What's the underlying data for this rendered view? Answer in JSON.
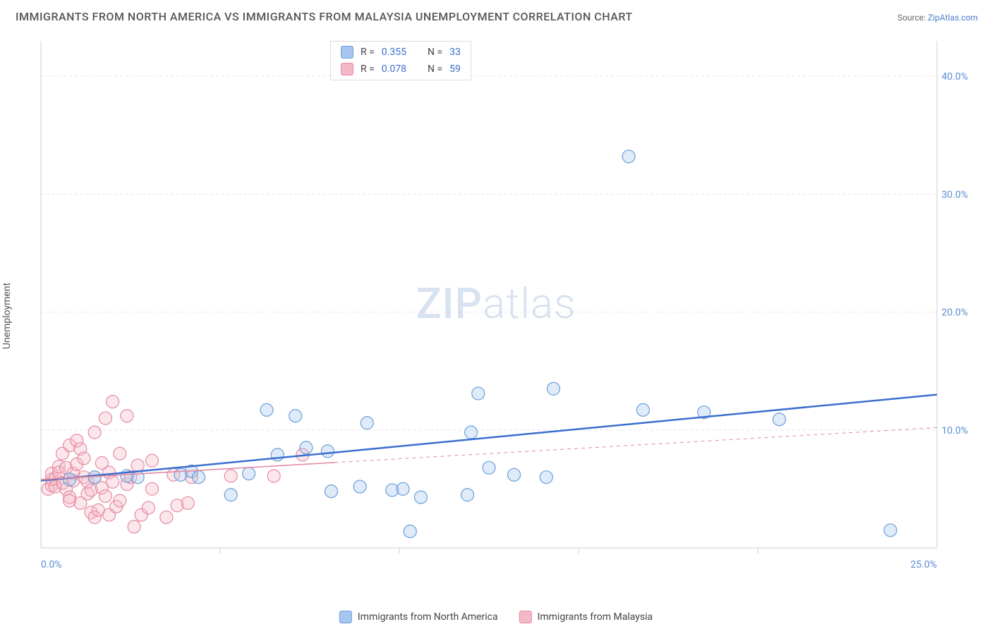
{
  "title": "IMMIGRANTS FROM NORTH AMERICA VS IMMIGRANTS FROM MALAYSIA UNEMPLOYMENT CORRELATION CHART",
  "source_label": "Source:",
  "source_name": "ZipAtlas.com",
  "ylabel": "Unemployment",
  "watermark_bold": "ZIP",
  "watermark_light": "atlas",
  "chart": {
    "type": "scatter",
    "xlim": [
      0,
      25
    ],
    "ylim": [
      0,
      43
    ],
    "x_tick_step": 5,
    "y_tick_step": 10,
    "x_tick_format": "percent_one_decimal",
    "y_tick_format": "percent_one_decimal",
    "x_tick_labels": [
      "0.0%",
      "25.0%"
    ],
    "y_tick_labels": [
      "10.0%",
      "20.0%",
      "30.0%",
      "40.0%"
    ],
    "background_color": "#ffffff",
    "grid_color": "#e6e6e6",
    "grid_dash": "4,4",
    "axis_color": "#cfcfcf",
    "tick_label_color": "#5b8dd6",
    "marker_radius": 9,
    "marker_fill_opacity": 0.35,
    "marker_stroke_width": 1.2,
    "series": [
      {
        "name": "Immigrants from North America",
        "key": "north_america",
        "color_fill": "#a7c6ef",
        "color_stroke": "#6a9ed8",
        "trend_color": "#3b6fcf",
        "trend_width": 2.5,
        "trend_dash_after_x": null,
        "r": "0.355",
        "n": "33",
        "points": [
          [
            3.9,
            6.2
          ],
          [
            4.2,
            6.5
          ],
          [
            4.4,
            6.0
          ],
          [
            5.3,
            4.5
          ],
          [
            5.8,
            6.3
          ],
          [
            6.3,
            11.7
          ],
          [
            7.1,
            11.2
          ],
          [
            7.4,
            8.5
          ],
          [
            6.6,
            7.9
          ],
          [
            8.0,
            8.2
          ],
          [
            8.1,
            4.8
          ],
          [
            8.9,
            5.2
          ],
          [
            9.1,
            10.6
          ],
          [
            9.8,
            4.9
          ],
          [
            10.1,
            5.0
          ],
          [
            10.3,
            1.4
          ],
          [
            10.6,
            4.3
          ],
          [
            11.9,
            4.5
          ],
          [
            12.0,
            9.8
          ],
          [
            12.2,
            13.1
          ],
          [
            12.5,
            6.8
          ],
          [
            13.2,
            6.2
          ],
          [
            14.1,
            6.0
          ],
          [
            14.3,
            13.5
          ],
          [
            16.4,
            33.2
          ],
          [
            16.8,
            11.7
          ],
          [
            18.5,
            11.5
          ],
          [
            20.6,
            10.9
          ],
          [
            23.7,
            1.5
          ],
          [
            2.7,
            6.0
          ],
          [
            2.4,
            6.1
          ],
          [
            1.5,
            6.0
          ],
          [
            0.8,
            5.8
          ]
        ],
        "trend": {
          "x1": 0,
          "y1": 5.7,
          "x2": 25,
          "y2": 13.0
        }
      },
      {
        "name": "Immigrants from Malaysia",
        "key": "malaysia",
        "color_fill": "#f3b9c6",
        "color_stroke": "#e68aa4",
        "trend_color": "#e08aa0",
        "trend_width": 1.6,
        "trend_dash_after_x": 8.2,
        "r": "0.078",
        "n": "59",
        "points": [
          [
            0.2,
            5.0
          ],
          [
            0.3,
            5.3
          ],
          [
            0.3,
            5.8
          ],
          [
            0.3,
            6.3
          ],
          [
            0.4,
            5.9
          ],
          [
            0.4,
            5.2
          ],
          [
            0.5,
            6.9
          ],
          [
            0.5,
            6.4
          ],
          [
            0.6,
            8.0
          ],
          [
            0.6,
            5.5
          ],
          [
            0.7,
            5.0
          ],
          [
            0.7,
            6.8
          ],
          [
            0.8,
            8.7
          ],
          [
            0.8,
            4.3
          ],
          [
            0.8,
            4.0
          ],
          [
            0.9,
            6.3
          ],
          [
            0.9,
            5.7
          ],
          [
            1.0,
            7.1
          ],
          [
            1.0,
            9.1
          ],
          [
            1.1,
            3.8
          ],
          [
            1.1,
            8.4
          ],
          [
            1.2,
            6.0
          ],
          [
            1.2,
            7.6
          ],
          [
            1.3,
            4.6
          ],
          [
            1.3,
            5.6
          ],
          [
            1.4,
            3.0
          ],
          [
            1.4,
            4.9
          ],
          [
            1.5,
            2.6
          ],
          [
            1.5,
            9.8
          ],
          [
            1.5,
            6.0
          ],
          [
            1.6,
            3.2
          ],
          [
            1.7,
            7.2
          ],
          [
            1.7,
            5.1
          ],
          [
            1.8,
            11.0
          ],
          [
            1.8,
            4.4
          ],
          [
            1.9,
            2.8
          ],
          [
            1.9,
            6.4
          ],
          [
            2.0,
            12.4
          ],
          [
            2.0,
            5.6
          ],
          [
            2.1,
            3.5
          ],
          [
            2.2,
            8.0
          ],
          [
            2.2,
            4.0
          ],
          [
            2.4,
            11.2
          ],
          [
            2.4,
            5.4
          ],
          [
            2.5,
            6.0
          ],
          [
            2.6,
            1.8
          ],
          [
            2.7,
            7.0
          ],
          [
            2.8,
            2.8
          ],
          [
            3.0,
            3.4
          ],
          [
            3.1,
            7.4
          ],
          [
            3.1,
            5.0
          ],
          [
            3.5,
            2.6
          ],
          [
            3.7,
            6.2
          ],
          [
            3.8,
            3.6
          ],
          [
            4.1,
            3.8
          ],
          [
            4.2,
            6.0
          ],
          [
            5.3,
            6.1
          ],
          [
            6.5,
            6.1
          ],
          [
            7.3,
            7.9
          ]
        ],
        "trend": {
          "x1": 0,
          "y1": 5.8,
          "x2": 25,
          "y2": 10.2
        }
      }
    ]
  },
  "legend": {
    "r_label": "R =",
    "n_label": "N =",
    "bottom_items": [
      {
        "key": "north_america",
        "label": "Immigrants from North America"
      },
      {
        "key": "malaysia",
        "label": "Immigrants from Malaysia"
      }
    ]
  }
}
